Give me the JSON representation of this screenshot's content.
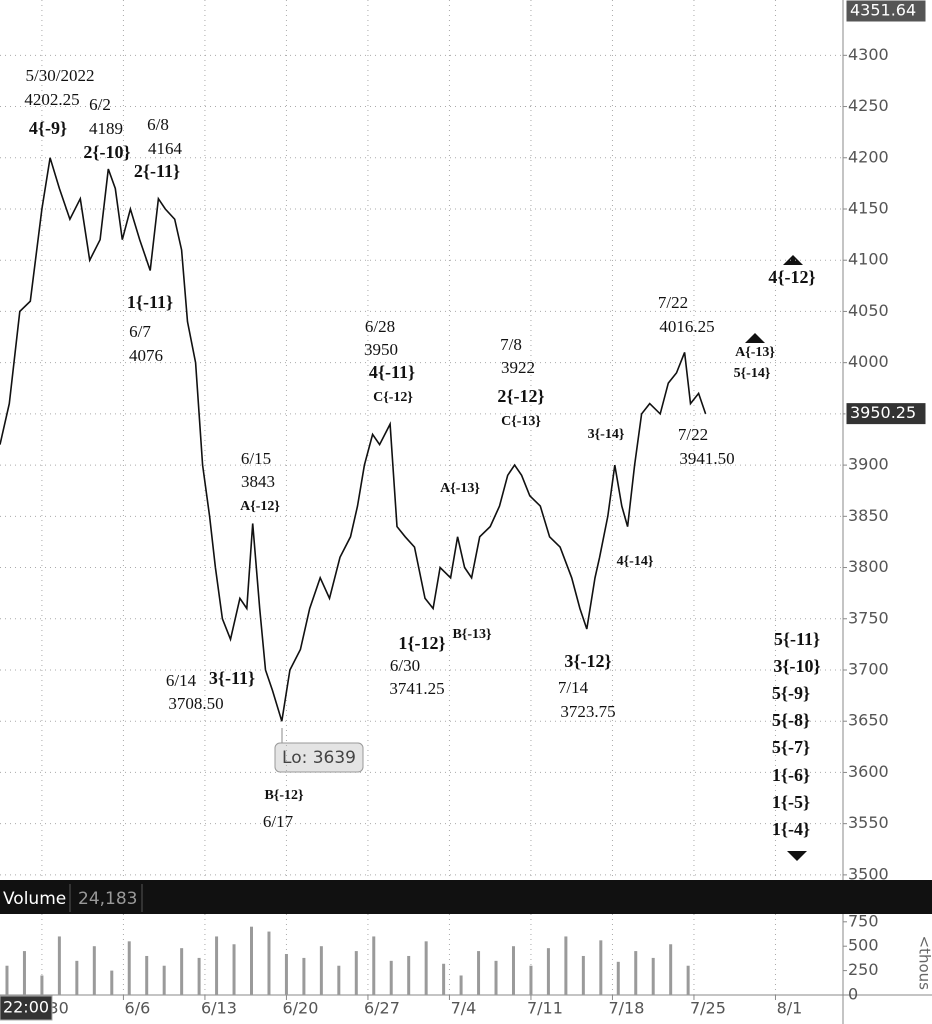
{
  "chart_data": [
    {
      "type": "line",
      "x": [
        -3.6,
        -2.8,
        -1.9,
        -1.0,
        0,
        0.7,
        1.5,
        2.4,
        3.3,
        4.1,
        5.0,
        5.7,
        6.3,
        6.9,
        7.6,
        8.4,
        9.3,
        10.0,
        10.6,
        11.4,
        12.0,
        12.5,
        13.2,
        13.8,
        14.4,
        14.9,
        15.5,
        16.2,
        17.0,
        17.6,
        18.1,
        18.7,
        19.2,
        19.8,
        20.6,
        21.3,
        22.2,
        23.0,
        23.9,
        24.7,
        25.6,
        26.5,
        27.1,
        27.7,
        28.4,
        29.0,
        29.9,
        30.5,
        31.2,
        32.0,
        32.9,
        33.6,
        34.2,
        35.1,
        35.7,
        36.3,
        36.9,
        37.6,
        38.5,
        39.3,
        40.0,
        40.6,
        41.2,
        41.9,
        42.8,
        43.6,
        44.5,
        45.5,
        46.2,
        46.8,
        47.5,
        47.9,
        48.6,
        49.2,
        49.8,
        50.3,
        50.9,
        51.5,
        52.2,
        53.1,
        53.8,
        54.5,
        55.2,
        55.7,
        56.4,
        57.0
      ],
      "series": [
        {
          "color": "#111111",
          "values": [
            3920,
            3960,
            4050,
            4060,
            4150,
            4200,
            4170,
            4140,
            4160,
            4100,
            4120,
            4189,
            4170,
            4120,
            4150,
            4120,
            4090,
            4160,
            4150,
            4140,
            4110,
            4040,
            4000,
            3900,
            3850,
            3800,
            3750,
            3730,
            3770,
            3760,
            3843,
            3760,
            3700,
            3680,
            3650,
            3700,
            3720,
            3760,
            3790,
            3770,
            3810,
            3830,
            3860,
            3900,
            3930,
            3920,
            3940,
            3840,
            3830,
            3820,
            3770,
            3760,
            3800,
            3790,
            3830,
            3800,
            3790,
            3830,
            3840,
            3860,
            3890,
            3900,
            3890,
            3870,
            3860,
            3830,
            3820,
            3790,
            3760,
            3740,
            3790,
            3810,
            3850,
            3900,
            3860,
            3840,
            3900,
            3950,
            3960,
            3950,
            3980,
            3990,
            4010,
            3960,
            3970,
            3950
          ]
        }
      ],
      "xlim": [
        -3.6,
        68.8
      ],
      "ylim": [
        3495,
        4354
      ],
      "yticks": [
        3500,
        3550,
        3600,
        3650,
        3700,
        3750,
        3800,
        3850,
        3900,
        3950,
        4000,
        4050,
        4100,
        4150,
        4200,
        4250,
        4300
      ],
      "xticks": [
        {
          "value": 0,
          "label": "/30"
        },
        {
          "value": 7,
          "label": "6/6"
        },
        {
          "value": 14,
          "label": "6/13"
        },
        {
          "value": 21,
          "label": "6/20"
        },
        {
          "value": 28,
          "label": "6/27"
        },
        {
          "value": 35,
          "label": "7/4"
        },
        {
          "value": 42,
          "label": "7/11"
        },
        {
          "value": 49,
          "label": "7/18"
        },
        {
          "value": 56,
          "label": "7/25"
        },
        {
          "value": 63,
          "label": "8/1"
        }
      ],
      "grid": true,
      "high_price": 4351.64,
      "last_price": 3950.25,
      "low_callout": "Lo: 3639",
      "crosshair_time": "22:00",
      "annotations": [
        "5/30/2022",
        "4202.25",
        "6/2",
        "4189",
        "6/8",
        "4164",
        "4{-9}",
        "2{-10}",
        "2{-11}",
        "1{-11}",
        "6/7",
        "4076",
        "6/15",
        "3843",
        "A{-12}",
        "6/14",
        "3708.50",
        "3{-11}",
        "B{-12}",
        "6/17",
        "6/28",
        "3950",
        "4{-11}",
        "C{-12}",
        "A{-13}",
        "1{-12}",
        "B{-13}",
        "6/30",
        "3741.25",
        "7/8",
        "3922",
        "2{-12}",
        "C{-13}",
        "3{-12}",
        "7/14",
        "3723.75",
        "3{-14}",
        "4{-14}",
        "7/22",
        "4016.25",
        "7/22",
        "3941.50",
        "4{-12}",
        "A{-13}",
        "5{-14}",
        "5{-11}",
        "3{-10}",
        "5{-9}",
        "5{-8}",
        "5{-7}",
        "1{-6}",
        "1{-5}",
        "1{-4}"
      ]
    },
    {
      "type": "bar",
      "title": "Volume",
      "last_volume": {
        "value": 24183,
        "label": "24,183"
      },
      "y_label": "<thous",
      "x": [
        -3,
        -1.5,
        0,
        1.5,
        3,
        4.5,
        6,
        7.5,
        9,
        10.5,
        12,
        13.5,
        15,
        16.5,
        18,
        19.5,
        21,
        22.5,
        24,
        25.5,
        27,
        28.5,
        30,
        31.5,
        33,
        34.5,
        36,
        37.5,
        39,
        40.5,
        42,
        43.5,
        45,
        46.5,
        48,
        49.5,
        51,
        52.5,
        54,
        55.5
      ],
      "values": [
        300,
        450,
        200,
        600,
        350,
        500,
        250,
        550,
        400,
        300,
        480,
        380,
        600,
        520,
        700,
        650,
        420,
        380,
        500,
        300,
        450,
        600,
        350,
        400,
        550,
        320,
        200,
        450,
        350,
        500,
        300,
        480,
        600,
        400,
        560,
        340,
        450,
        380,
        520,
        300
      ],
      "color": "#9a9a9a",
      "ylim": [
        0,
        830
      ],
      "yticks": [
        0,
        250,
        500,
        750
      ]
    }
  ]
}
